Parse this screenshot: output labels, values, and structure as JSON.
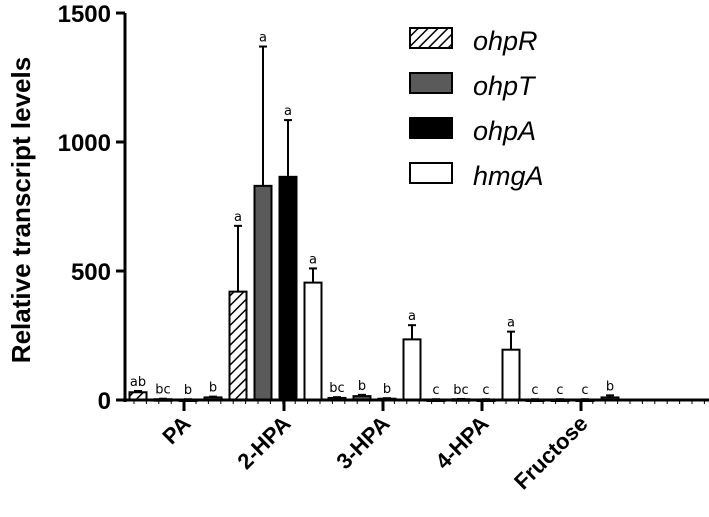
{
  "chart_data": {
    "type": "bar",
    "title": "",
    "xlabel": "",
    "ylabel": "Relative transcript levels",
    "ylim": [
      0,
      1500
    ],
    "yticks": [
      0,
      500,
      1000,
      1500
    ],
    "categories": [
      "PA",
      "2-HPA",
      "3-HPA",
      "4-HPA",
      "Fructose"
    ],
    "legend_position": "top-right",
    "grid": false,
    "series": [
      {
        "name": "ohpR",
        "fill": "hatched",
        "values": [
          30,
          420,
          8,
          2,
          2
        ],
        "errors": [
          5,
          255,
          3,
          1,
          1
        ],
        "labels": [
          "ab",
          "a",
          "bc",
          "c",
          "c"
        ]
      },
      {
        "name": "ohpT",
        "fill": "#5a5a5a",
        "values": [
          3,
          830,
          15,
          3,
          2
        ],
        "errors": [
          2,
          540,
          5,
          1,
          1
        ],
        "labels": [
          "bc",
          "a",
          "b",
          "bc",
          "c"
        ]
      },
      {
        "name": "ohpA",
        "fill": "#000000",
        "values": [
          2,
          865,
          5,
          2,
          2
        ],
        "errors": [
          1,
          220,
          2,
          1,
          1
        ],
        "labels": [
          "b",
          "a",
          "b",
          "c",
          "c"
        ]
      },
      {
        "name": "hmgA",
        "fill": "#ffffff",
        "values": [
          10,
          455,
          235,
          195,
          10
        ],
        "errors": [
          3,
          55,
          55,
          70,
          8
        ],
        "labels": [
          "b",
          "a",
          "a",
          "a",
          "b"
        ]
      }
    ]
  },
  "axis": {
    "ylabel": "Relative transcript levels",
    "yticks": [
      "1500",
      "1000",
      "500",
      "0"
    ],
    "xticks": [
      "PA",
      "2-HPA",
      "3-HPA",
      "4-HPA",
      "Fructose"
    ]
  },
  "legend": {
    "items": [
      "ohpR",
      "ohpT",
      "ohpA",
      "hmgA"
    ]
  }
}
